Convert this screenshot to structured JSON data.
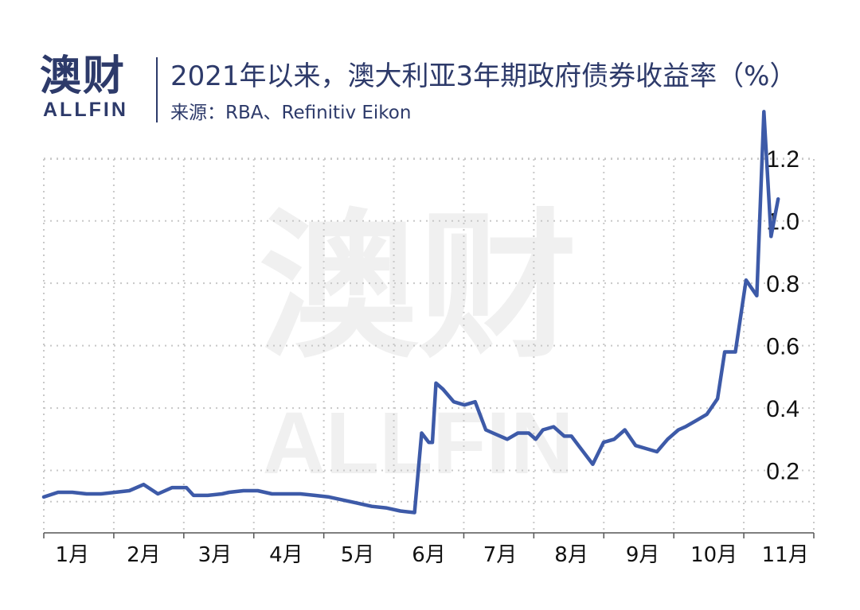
{
  "logo": {
    "cn": "澳财",
    "en": "ALLFIN"
  },
  "header": {
    "title": "2021年以来，澳大利亚3年期政府债券收益率（%）",
    "source": "来源：RBA、Refinitiv Eikon"
  },
  "watermark": {
    "cn": "澳财",
    "en": "ALLFIN"
  },
  "colors": {
    "line": "#3d5aa8",
    "text": "#2d3a6a",
    "grid": "#c8c8c8",
    "watermark": "#f0f0f0"
  },
  "chart_data": {
    "type": "line",
    "title": "2021年以来，澳大利亚3年期政府债券收益率（%）",
    "xlabel": "",
    "ylabel": "",
    "x_ticks": [
      {
        "label": "1月",
        "pos": 0.4
      },
      {
        "label": "2月",
        "pos": 1.4
      },
      {
        "label": "3月",
        "pos": 2.4
      },
      {
        "label": "4月",
        "pos": 3.4
      },
      {
        "label": "5月",
        "pos": 4.4
      },
      {
        "label": "6月",
        "pos": 5.4
      },
      {
        "label": "7月",
        "pos": 6.4
      },
      {
        "label": "8月",
        "pos": 7.4
      },
      {
        "label": "9月",
        "pos": 8.4
      },
      {
        "label": "10月",
        "pos": 9.4
      },
      {
        "label": "11月",
        "pos": 10.4
      }
    ],
    "y_ticks": [
      {
        "label": "0.2",
        "value": 0.2
      },
      {
        "label": "0.4",
        "value": 0.4
      },
      {
        "label": "0.6",
        "value": 0.6
      },
      {
        "label": "0.8",
        "value": 0.8
      },
      {
        "label": "1.0",
        "value": 1.0
      },
      {
        "label": "1.2",
        "value": 1.2
      }
    ],
    "ylim": [
      0.0,
      1.3
    ],
    "grid": true,
    "series": [
      {
        "x": [
          0.0,
          0.2,
          0.4,
          0.6,
          0.8,
          1.0,
          1.2,
          1.4,
          1.6,
          1.8,
          2.0,
          2.1,
          2.3,
          2.5,
          2.6,
          2.8,
          3.0,
          3.2,
          3.4,
          3.6,
          3.8,
          4.0,
          4.2,
          4.4,
          4.6,
          4.8,
          5.0,
          5.2,
          5.3,
          5.4,
          5.45,
          5.5,
          5.6,
          5.75,
          5.9,
          6.05,
          6.2,
          6.3,
          6.5,
          6.65,
          6.8,
          6.9,
          7.0,
          7.15,
          7.3,
          7.4,
          7.5,
          7.7,
          7.85,
          8.0,
          8.15,
          8.3,
          8.45,
          8.6,
          8.75,
          8.9,
          9.0,
          9.15,
          9.3,
          9.45,
          9.55,
          9.7,
          9.85,
          10.0,
          10.1,
          10.2,
          10.3
        ],
        "y": [
          0.115,
          0.13,
          0.13,
          0.125,
          0.125,
          0.13,
          0.135,
          0.155,
          0.125,
          0.145,
          0.145,
          0.12,
          0.12,
          0.125,
          0.13,
          0.135,
          0.135,
          0.125,
          0.125,
          0.125,
          0.12,
          0.115,
          0.105,
          0.095,
          0.085,
          0.08,
          0.07,
          0.065,
          0.32,
          0.29,
          0.29,
          0.48,
          0.46,
          0.42,
          0.41,
          0.42,
          0.33,
          0.32,
          0.3,
          0.32,
          0.32,
          0.3,
          0.33,
          0.34,
          0.31,
          0.31,
          0.28,
          0.22,
          0.29,
          0.3,
          0.33,
          0.28,
          0.27,
          0.26,
          0.3,
          0.33,
          0.34,
          0.36,
          0.38,
          0.43,
          0.58,
          0.58,
          0.81,
          0.76,
          1.35,
          0.95,
          1.07
        ]
      }
    ]
  }
}
